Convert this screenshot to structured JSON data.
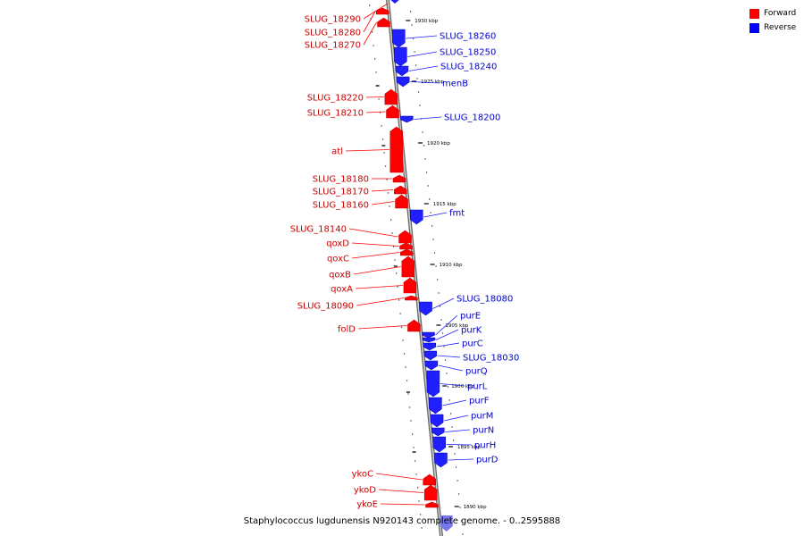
{
  "legend": [
    {
      "label": "Forward",
      "color": "#ff0000"
    },
    {
      "label": "Reverse",
      "color": "#0000ff"
    }
  ],
  "caption": "Staphylococcus lugdunensis N920143 complete genome. - 0..2595888",
  "colors": {
    "forward": "#ff0000",
    "reverse": "#1f1fff",
    "forward_label": "#cc0000",
    "reverse_label": "#0000cc",
    "backbone": "#999999"
  },
  "ticks": [
    "1930 kbp",
    "1925 kbp",
    "1920 kbp",
    "1915 kbp",
    "1910 kbp",
    "1905 kbp",
    "1900 kbp",
    "1895 kbp",
    "1890 kbp"
  ],
  "forward_genes": [
    "SLUG_18290",
    "SLUG_18280",
    "SLUG_18270",
    "SLUG_18220",
    "SLUG_18210",
    "atl",
    "SLUG_18180",
    "SLUG_18170",
    "SLUG_18160",
    "SLUG_18140",
    "qoxD",
    "qoxC",
    "qoxB",
    "qoxA",
    "SLUG_18090",
    "folD",
    "ykoC",
    "ykoD",
    "ykoE"
  ],
  "reverse_genes": [
    "SLUG_18260",
    "SLUG_18250",
    "SLUG_18240",
    "menB",
    "SLUG_18200",
    "fmt",
    "SLUG_18080",
    "purE",
    "purK",
    "purC",
    "SLUG_18030",
    "purQ",
    "purL",
    "purF",
    "purM",
    "purN",
    "purH",
    "purD"
  ]
}
